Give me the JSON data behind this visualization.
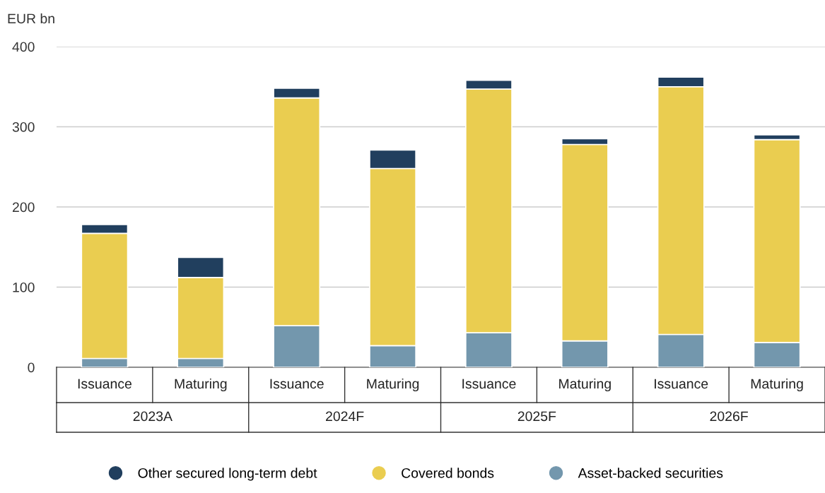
{
  "chart_data": {
    "type": "bar",
    "stacked": true,
    "ylabel": "EUR bn",
    "categories": [
      "Issuance",
      "Maturing",
      "Issuance",
      "Maturing",
      "Issuance",
      "Maturing",
      "Issuance",
      "Maturing"
    ],
    "series": [
      {
        "name": "Asset-backed securities",
        "color": "#7397ad",
        "values": [
          11,
          11,
          52,
          27,
          43,
          33,
          41,
          31
        ]
      },
      {
        "name": "Covered bonds",
        "color": "#eacd50",
        "values": [
          156,
          101,
          284,
          221,
          304,
          245,
          309,
          253
        ]
      },
      {
        "name": "Other secured long-term debt",
        "color": "#213f5e",
        "values": [
          11,
          25,
          12,
          23,
          11,
          7,
          12,
          6
        ]
      }
    ],
    "annotations": [
      "2023A",
      "2024F",
      "2025F",
      "2026F"
    ],
    "ylim": [
      0,
      400
    ],
    "yticks": [
      0,
      100,
      200,
      300,
      400
    ],
    "grid": "y",
    "legend": "bottom"
  }
}
